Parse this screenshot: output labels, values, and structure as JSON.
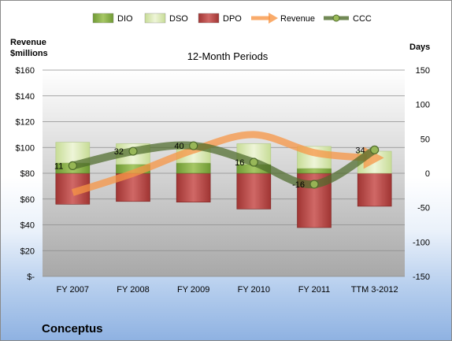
{
  "company_name": "Conceptus",
  "chart_data": {
    "type": "bar",
    "title": "12-Month Periods",
    "left_axis_title": [
      "Revenue",
      "$millions"
    ],
    "right_axis_title": "Days",
    "categories": [
      "FY 2007",
      "FY 2008",
      "FY 2009",
      "FY 2010",
      "FY 2011",
      "TTM 3-2012"
    ],
    "left_axis": {
      "min": 0,
      "max": 160,
      "step": 20,
      "tick_labels": [
        "$-",
        "$20",
        "$40",
        "$60",
        "$80",
        "$100",
        "$120",
        "$140",
        "$160"
      ]
    },
    "right_axis": {
      "min": -150,
      "max": 150,
      "step": 50,
      "tick_labels": [
        "-150",
        "-100",
        "-50",
        "0",
        "50",
        "100",
        "150"
      ]
    },
    "legend": [
      {
        "name": "DIO",
        "kind": "bar",
        "color": "#8fb44a"
      },
      {
        "name": "DSO",
        "kind": "bar",
        "color": "#d9e8b1"
      },
      {
        "name": "DPO",
        "kind": "bar",
        "color": "#c0504d"
      },
      {
        "name": "Revenue",
        "kind": "arrow",
        "color": "#f79646"
      },
      {
        "name": "CCC",
        "kind": "line",
        "color": "#4e6b2b"
      }
    ],
    "series": [
      {
        "name": "DIO",
        "axis": "days",
        "values": [
          -15,
          -13,
          -15,
          -13,
          -7,
          0
        ]
      },
      {
        "name": "DSO",
        "axis": "days",
        "values": [
          30,
          30,
          27,
          30,
          32,
          32
        ]
      },
      {
        "name": "DPO",
        "axis": "days",
        "values": [
          -45,
          -41,
          -42,
          -52,
          -79,
          -48
        ]
      },
      {
        "name": "Revenue",
        "axis": "revenue",
        "values": [
          65,
          80,
          98,
          110,
          96,
          92
        ]
      },
      {
        "name": "CCC",
        "axis": "days",
        "values": [
          11,
          32,
          40,
          16,
          -16,
          34
        ]
      }
    ],
    "stack_note_days": {
      "dpo_top": [
        0,
        0,
        0,
        0,
        0,
        0
      ]
    },
    "ccc_labels": [
      "11",
      "32",
      "40",
      "16",
      "-16",
      "34"
    ],
    "grid": true,
    "legend_position": "top"
  }
}
